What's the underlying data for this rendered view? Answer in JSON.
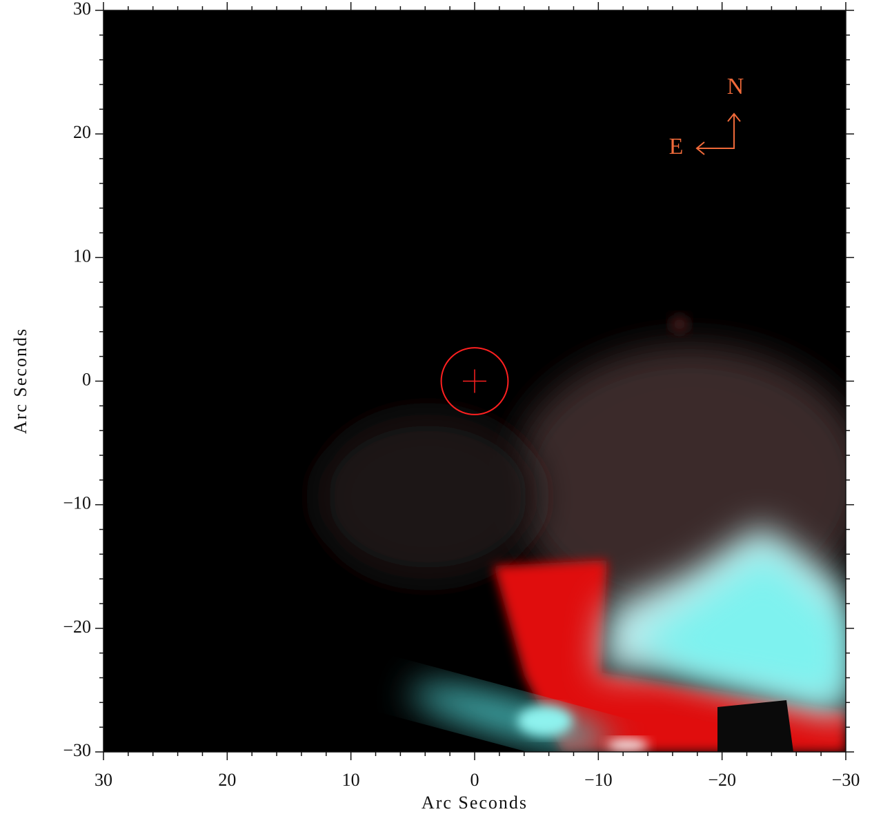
{
  "chart_data": {
    "type": "image",
    "x_label": "Arc Seconds",
    "y_label": "Arc Seconds",
    "xlim": [
      30,
      -30
    ],
    "ylim": [
      -30,
      30
    ],
    "xticks": [
      30,
      20,
      10,
      0,
      {
        "value": -10,
        "label": "−10"
      },
      {
        "value": -20,
        "label": "−20"
      },
      {
        "value": -30,
        "label": "−30"
      }
    ],
    "yticks": [
      {
        "value": -30,
        "label": "−30"
      },
      {
        "value": -20,
        "label": "−20"
      },
      {
        "value": -10,
        "label": "−10"
      },
      0,
      10,
      20,
      30
    ],
    "minor_tick_interval": 2,
    "target": {
      "x": 0,
      "y": 0,
      "radius": 2.7,
      "color": "#ff2020"
    },
    "compass": {
      "north": "N",
      "east": "E",
      "color": "#f06a3a"
    }
  }
}
